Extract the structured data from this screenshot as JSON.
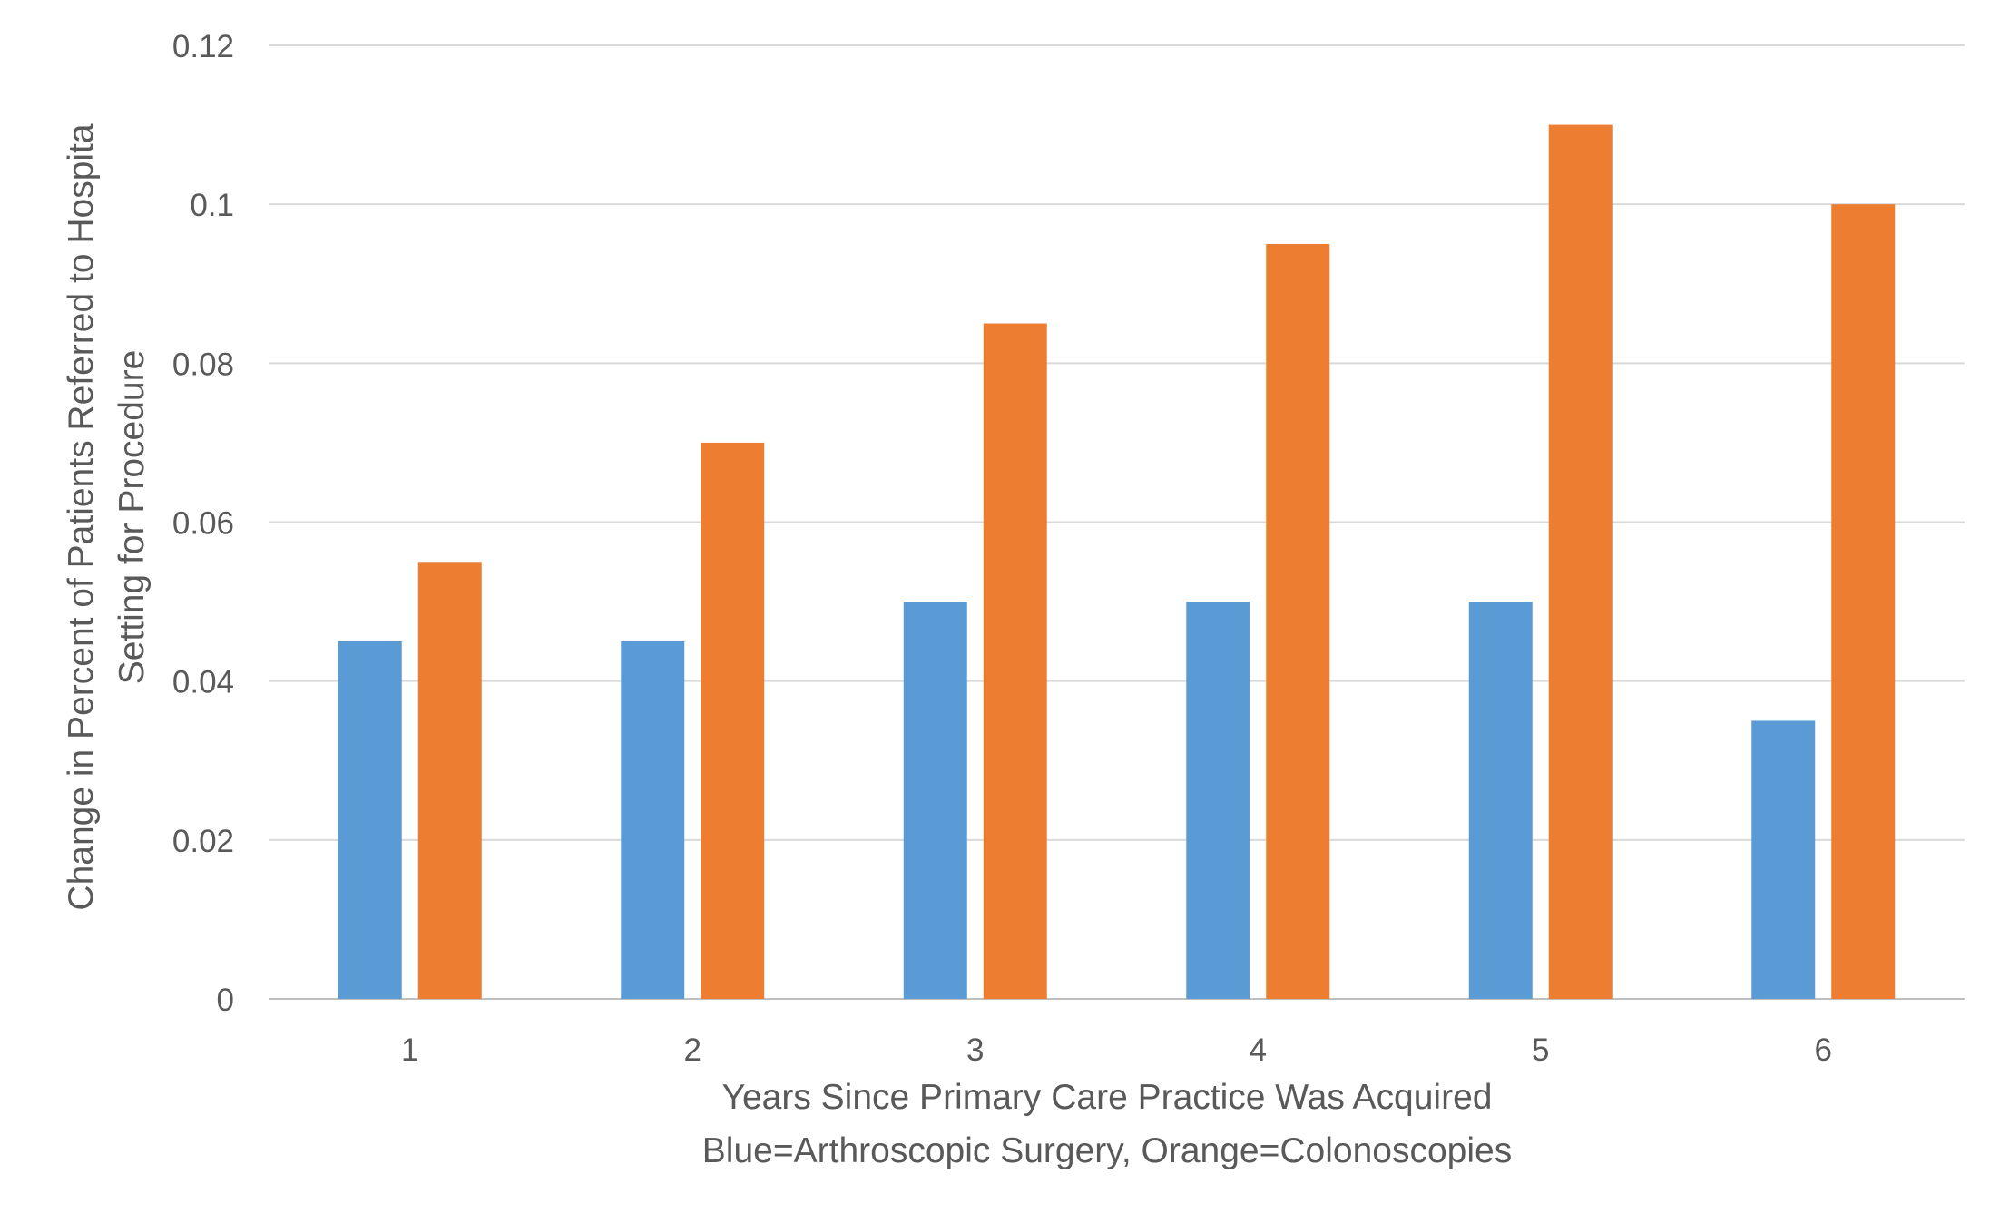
{
  "chart_data": {
    "type": "bar",
    "title": "",
    "categories": [
      "1",
      "2",
      "3",
      "4",
      "5",
      "6"
    ],
    "series": [
      {
        "values": [
          0.045,
          0.045,
          0.05,
          0.05,
          0.05,
          0.035
        ],
        "color": "#5B9BD5"
      },
      {
        "values": [
          0.055,
          0.07,
          0.085,
          0.095,
          0.11,
          0.1
        ],
        "color": "#ED7D31"
      }
    ],
    "ylim": [
      0,
      0.12
    ],
    "yticks": [
      "0",
      "0.02",
      "0.04",
      "0.06",
      "0.08",
      "0.1",
      "0.12"
    ],
    "ytick_values": [
      0,
      0.02,
      0.04,
      0.06,
      0.08,
      0.1,
      0.12
    ],
    "xlabel": [
      "Years Since Primary Care Practice Was Acquired",
      "Blue=Arthroscopic Surgery, Orange=Colonoscopies"
    ],
    "ylabel": [
      "Change in Percent of Patients Referred to Hospita",
      "Setting for Procedure"
    ],
    "grid": true,
    "legend": "none"
  }
}
